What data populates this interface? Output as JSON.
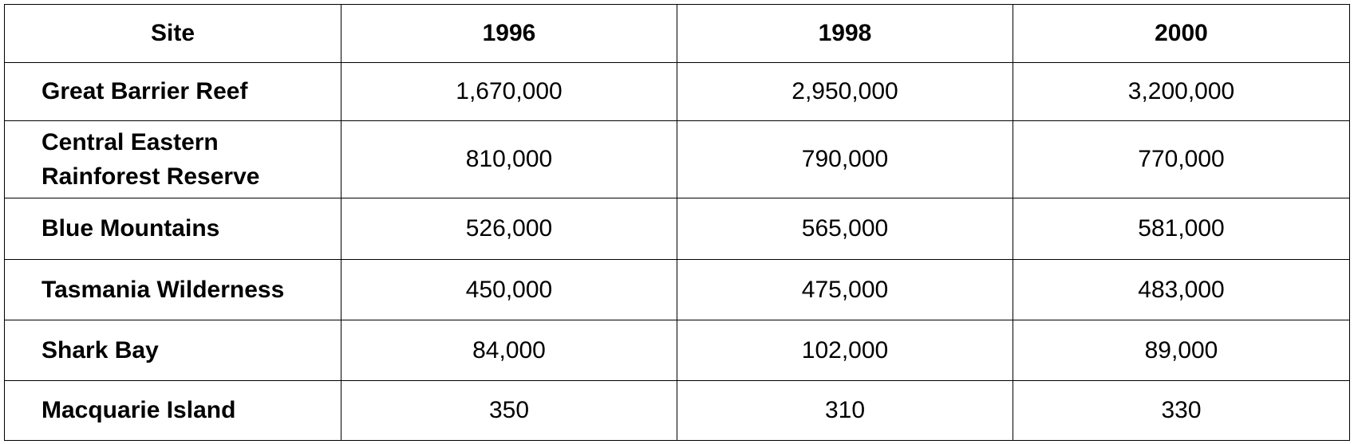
{
  "table": {
    "header": [
      "Site",
      "1996",
      "1998",
      "2000"
    ],
    "rows": [
      [
        "Great Barrier Reef",
        "1,670,000",
        "2,950,000",
        "3,200,000"
      ],
      [
        "Central Eastern Rainforest Reserve",
        "810,000",
        "790,000",
        "770,000"
      ],
      [
        "Blue Mountains",
        "526,000",
        "565,000",
        "581,000"
      ],
      [
        "Tasmania Wilderness",
        "450,000",
        "475,000",
        "483,000"
      ],
      [
        "Shark Bay",
        "84,000",
        "102,000",
        "89,000"
      ],
      [
        "Macquarie Island",
        "350",
        "310",
        "330"
      ]
    ]
  }
}
